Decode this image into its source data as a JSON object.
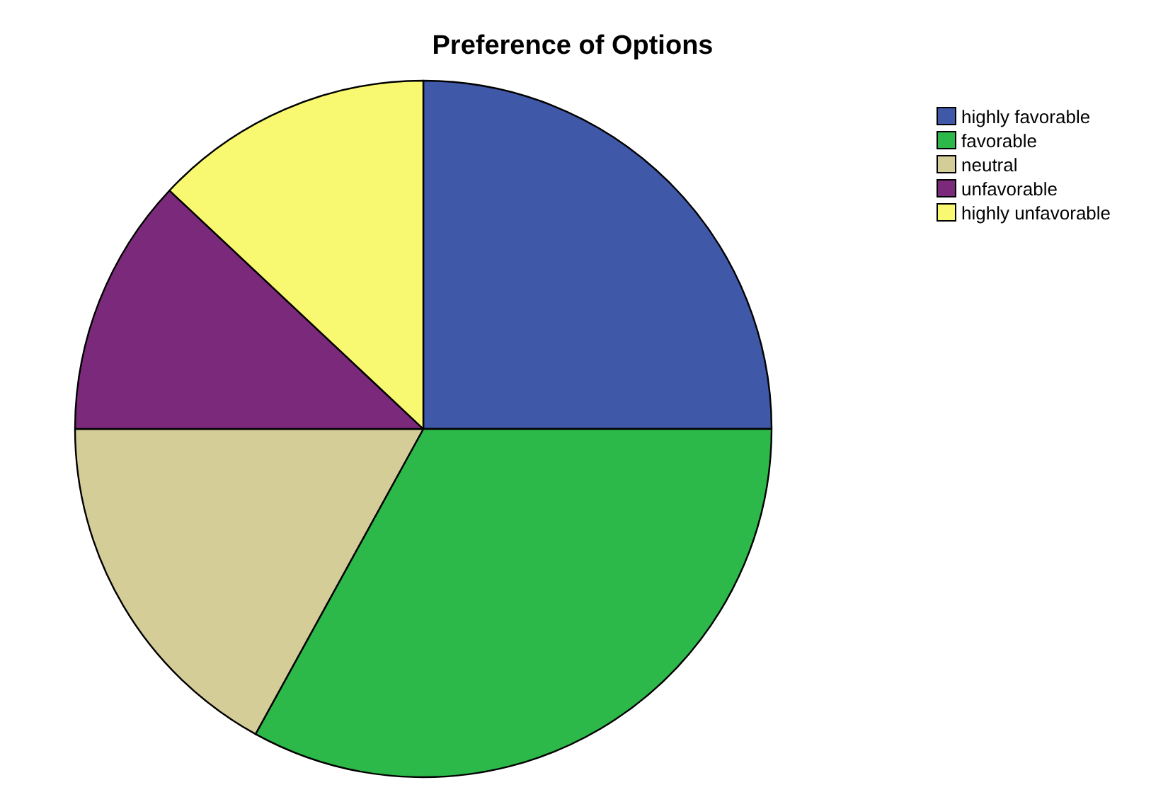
{
  "chart_data": {
    "type": "pie",
    "title": "Preference of Options",
    "categories": [
      "highly favorable",
      "favorable",
      "neutral",
      "unfavorable",
      "highly unfavorable"
    ],
    "values": [
      25,
      33,
      17,
      12,
      13
    ],
    "colors": [
      "#3f58a8",
      "#2db84a",
      "#d4cd98",
      "#7b2a7b",
      "#f9f871"
    ],
    "legend": "top right"
  }
}
